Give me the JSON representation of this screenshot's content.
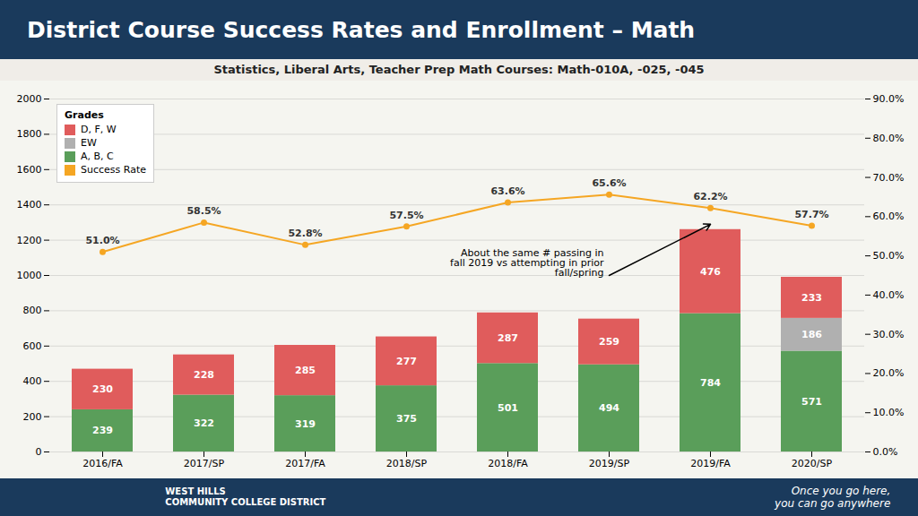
{
  "chart_data": {
    "type": "bar",
    "stacked": true,
    "title": "District Course Success Rates and Enrollment – Math",
    "subtitle": "Statistics, Liberal Arts, Teacher Prep Math Courses: Math-010A, -025, -045",
    "categories": [
      "2016/FA",
      "2017/SP",
      "2017/FA",
      "2018/SP",
      "2018/FA",
      "2019/SP",
      "2019/FA",
      "2020/SP"
    ],
    "series": [
      {
        "name": "A, B, C",
        "type": "bar",
        "color": "#5a9e5a",
        "values": [
          239,
          322,
          319,
          375,
          501,
          494,
          784,
          571
        ]
      },
      {
        "name": "EW",
        "type": "bar",
        "color": "#b0b0b0",
        "values": [
          0,
          0,
          0,
          0,
          0,
          0,
          0,
          186
        ]
      },
      {
        "name": "D, F, W",
        "type": "bar",
        "color": "#e05c5c",
        "values": [
          230,
          228,
          285,
          277,
          287,
          259,
          476,
          233
        ]
      },
      {
        "name": "Success Rate",
        "type": "line",
        "axis": "y2",
        "color": "#f5a623",
        "marker": "circle",
        "values": [
          0.51,
          0.585,
          0.528,
          0.575,
          0.636,
          0.656,
          0.622,
          0.577
        ],
        "value_labels": [
          "51.0%",
          "58.5%",
          "52.8%",
          "57.5%",
          "63.6%",
          "65.6%",
          "62.2%",
          "57.7%"
        ]
      }
    ],
    "ylim": [
      0,
      2000
    ],
    "yticks": [
      0,
      200,
      400,
      600,
      800,
      1000,
      1200,
      1400,
      1600,
      1800,
      2000
    ],
    "y2lim": [
      0,
      0.9
    ],
    "y2ticks": [
      {
        "value": 0.0,
        "label": "0.0%"
      },
      {
        "value": 0.1,
        "label": "10.0%"
      },
      {
        "value": 0.2,
        "label": "20.0%"
      },
      {
        "value": 0.3,
        "label": "30.0%"
      },
      {
        "value": 0.4,
        "label": "40.0%"
      },
      {
        "value": 0.5,
        "label": "50.0%"
      },
      {
        "value": 0.6,
        "label": "60.0%"
      },
      {
        "value": 0.7,
        "label": "70.0%"
      },
      {
        "value": 0.8,
        "label": "80.0%"
      },
      {
        "value": 0.9,
        "label": "90.0%"
      }
    ],
    "grid": true,
    "data_labels": true,
    "legend": "upper left",
    "legend_title": "Grades",
    "annotations": [
      {
        "text": "About the same # passing in\nfall 2019 vs attempting in prior\nfall/spring",
        "x": "2019/FA"
      }
    ],
    "footer": [
      "WEST HILLS\nCOMMUNITY COLLEGE DISTRICT",
      "Once you go here,\nyou can go anywhere"
    ]
  }
}
